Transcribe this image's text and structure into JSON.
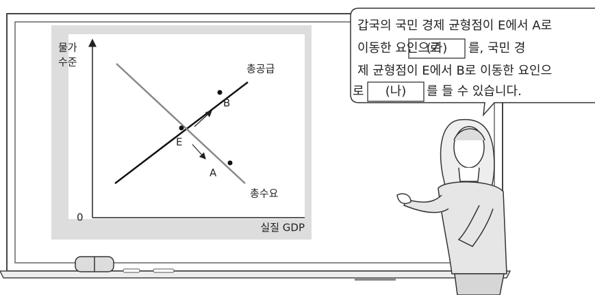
{
  "graph": {
    "y_axis_label": [
      "물가",
      "수준"
    ],
    "origin": "0",
    "x_axis_label": "실질 GDP",
    "supply_label": "총공급",
    "demand_label": "총수요",
    "points": {
      "E": "E",
      "A": "A",
      "B": "B"
    }
  },
  "speech": {
    "line1": "갑국의 국민 경제 균형점이 E에서 A로",
    "line2_before": "이동한 요인으로",
    "blank1": "(가)",
    "line2_after": "를, 국민 경",
    "line3": "제 균형점이 E에서 B로 이동한 요인으",
    "line4_before": "로",
    "blank2": "(나)",
    "line4_after": "를 들 수 있습니다."
  }
}
